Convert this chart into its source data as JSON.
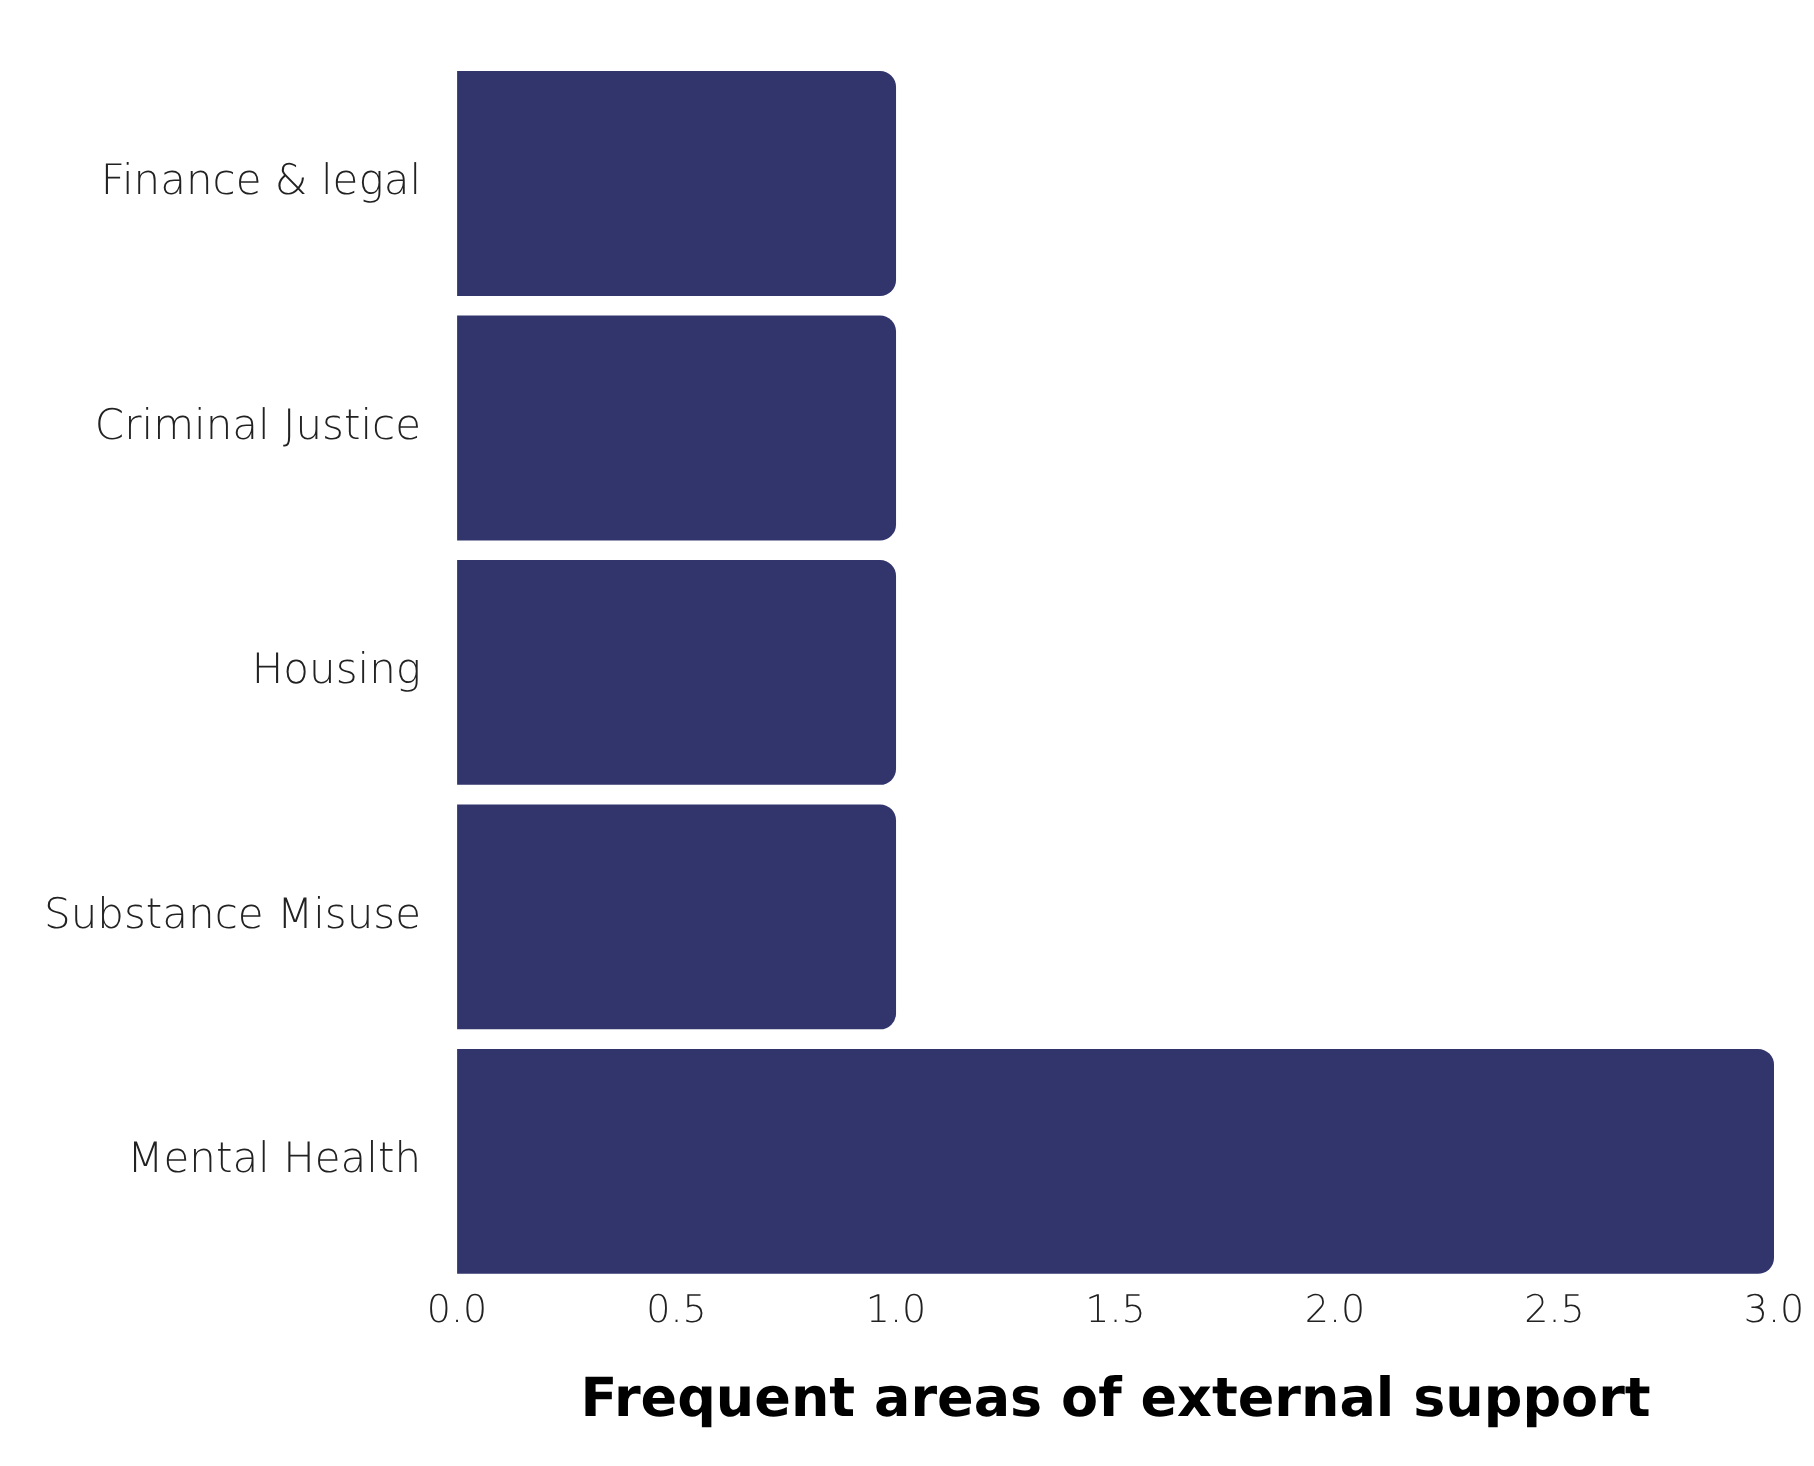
{
  "chart_data": {
    "type": "bar",
    "orientation": "horizontal",
    "xlabel": "Frequent areas of external support",
    "categories": [
      "Finance & legal",
      "Criminal Justice",
      "Housing",
      "Substance Misuse",
      "Mental Health"
    ],
    "values": [
      1,
      1,
      1,
      1,
      3
    ],
    "color": "#32356b",
    "xlim": [
      0,
      3
    ],
    "xticks": [
      {
        "value": 0,
        "label": "0.0"
      },
      {
        "value": 0.5,
        "label": "0.5"
      },
      {
        "value": 1,
        "label": "1.0"
      },
      {
        "value": 1.5,
        "label": "1.5"
      },
      {
        "value": 2,
        "label": "2.0"
      },
      {
        "value": 2.5,
        "label": "2.5"
      },
      {
        "value": 3,
        "label": "3.0"
      }
    ],
    "grid": false,
    "legend": false
  }
}
